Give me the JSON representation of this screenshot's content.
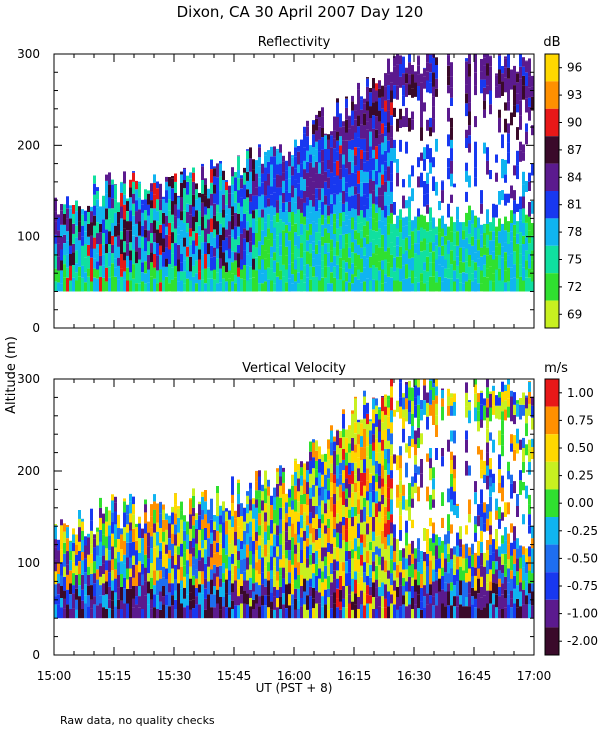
{
  "title": "Dixon, CA 30 April 2007  Day 120",
  "ylabel": "Altitude (m)",
  "xlabel": "UT  (PST + 8)",
  "footnote": "Raw data, no quality checks",
  "x_ticks": [
    "15:00",
    "15:15",
    "15:30",
    "15:45",
    "16:00",
    "16:15",
    "16:30",
    "16:45",
    "17:00"
  ],
  "y_ticks": [
    "0",
    "100",
    "200",
    "300"
  ],
  "chart_data": [
    {
      "type": "heatmap",
      "title": "Reflectivity",
      "units": "dB",
      "x_range_minutes": [
        0,
        120
      ],
      "x_range_label": [
        "15:00",
        "17:00"
      ],
      "ylim": [
        0,
        300
      ],
      "colorbar_labels": [
        "96",
        "93",
        "90",
        "87",
        "84",
        "81",
        "78",
        "75",
        "72",
        "69"
      ],
      "colorbar_colors": [
        "#ffd800",
        "#ff9000",
        "#e81818",
        "#3a0a2a",
        "#5b1a8e",
        "#1838f0",
        "#10b4f0",
        "#10e0a0",
        "#30e030",
        "#c8f020"
      ],
      "layer_top_profile": [
        {
          "t": 0,
          "alt": 140
        },
        {
          "t": 15,
          "alt": 160
        },
        {
          "t": 30,
          "alt": 160
        },
        {
          "t": 45,
          "alt": 180
        },
        {
          "t": 60,
          "alt": 200
        },
        {
          "t": 75,
          "alt": 260
        },
        {
          "t": 90,
          "alt": 300
        },
        {
          "t": 120,
          "alt": 300
        }
      ],
      "layer_base_alt": 40
    },
    {
      "type": "heatmap",
      "title": "Vertical Velocity",
      "units": "m/s",
      "x_range_minutes": [
        0,
        120
      ],
      "x_range_label": [
        "15:00",
        "17:00"
      ],
      "ylim": [
        0,
        300
      ],
      "colorbar_labels": [
        "1.00",
        "0.75",
        "0.50",
        "0.25",
        "0.00",
        "-0.25",
        "-0.50",
        "-0.75",
        "-1.00",
        "-2.00"
      ],
      "colorbar_colors": [
        "#e81818",
        "#ff9000",
        "#ffd800",
        "#c8f020",
        "#30e030",
        "#10b4f0",
        "#1e6ef0",
        "#1838f0",
        "#5b1a8e",
        "#3a0a2a"
      ],
      "layer_top_profile": [
        {
          "t": 0,
          "alt": 140
        },
        {
          "t": 15,
          "alt": 160
        },
        {
          "t": 30,
          "alt": 160
        },
        {
          "t": 45,
          "alt": 180
        },
        {
          "t": 60,
          "alt": 200
        },
        {
          "t": 75,
          "alt": 270
        },
        {
          "t": 90,
          "alt": 300
        },
        {
          "t": 120,
          "alt": 300
        }
      ],
      "layer_base_alt": 40
    }
  ]
}
